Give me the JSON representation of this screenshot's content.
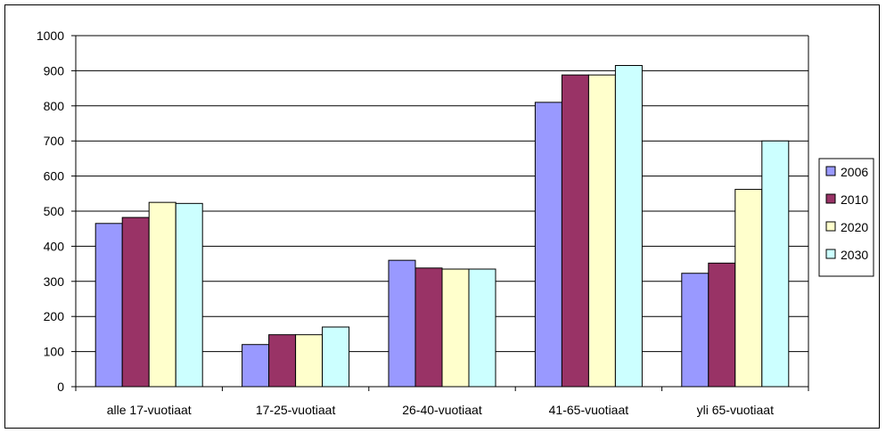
{
  "chart_data": {
    "type": "bar",
    "categories": [
      "alle 17-vuotiaat",
      "17-25-vuotiaat",
      "26-40-vuotiaat",
      "41-65-vuotiaat",
      "yli 65-vuotiaat"
    ],
    "series": [
      {
        "name": "2006",
        "color": "#9999ff",
        "values": [
          465,
          120,
          360,
          810,
          323
        ]
      },
      {
        "name": "2010",
        "color": "#993366",
        "values": [
          482,
          148,
          338,
          888,
          352
        ]
      },
      {
        "name": "2020",
        "color": "#ffffcc",
        "values": [
          525,
          148,
          335,
          888,
          562
        ]
      },
      {
        "name": "2030",
        "color": "#ccffff",
        "values": [
          522,
          170,
          335,
          915,
          700
        ]
      }
    ],
    "ylim": [
      0,
      1000
    ],
    "yticks": [
      0,
      100,
      200,
      300,
      400,
      500,
      600,
      700,
      800,
      900,
      1000
    ],
    "grid": true,
    "legend_position": "right",
    "title": "",
    "xlabel": "",
    "ylabel": ""
  }
}
